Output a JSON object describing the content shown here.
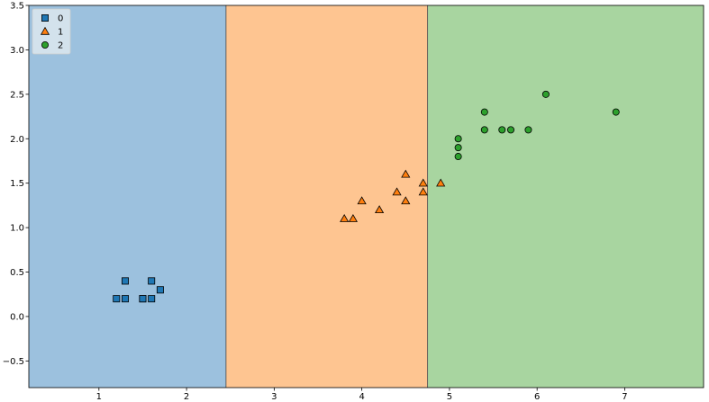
{
  "chart_data": {
    "type": "scatter",
    "title": "",
    "xlabel": "",
    "ylabel": "",
    "xlim": [
      0.2,
      7.9
    ],
    "ylim": [
      -0.8,
      3.5
    ],
    "xticks": [
      1,
      2,
      3,
      4,
      5,
      6,
      7
    ],
    "yticks": [
      -0.5,
      0.0,
      0.5,
      1.0,
      1.5,
      2.0,
      2.5,
      3.0,
      3.5
    ],
    "grid": false,
    "legend_position": "top-left",
    "decision_regions": [
      {
        "class": "0",
        "x_from": 0.2,
        "x_to": 2.45,
        "color": "#9cc1de"
      },
      {
        "class": "1",
        "x_from": 2.45,
        "x_to": 4.75,
        "color": "#fec591"
      },
      {
        "class": "2",
        "x_from": 4.75,
        "x_to": 7.9,
        "color": "#a8d5a0"
      }
    ],
    "boundaries": [
      2.45,
      4.75
    ],
    "series": [
      {
        "name": "0",
        "marker": "square",
        "color": "#1f77b4",
        "points": [
          [
            1.3,
            0.4
          ],
          [
            1.6,
            0.4
          ],
          [
            1.7,
            0.3
          ],
          [
            1.2,
            0.2
          ],
          [
            1.3,
            0.2
          ],
          [
            1.5,
            0.2
          ],
          [
            1.5,
            0.2
          ],
          [
            1.6,
            0.2
          ]
        ]
      },
      {
        "name": "1",
        "marker": "triangle",
        "color": "#ff7f0e",
        "points": [
          [
            3.8,
            1.1
          ],
          [
            3.9,
            1.1
          ],
          [
            4.0,
            1.3
          ],
          [
            4.2,
            1.2
          ],
          [
            4.4,
            1.4
          ],
          [
            4.5,
            1.3
          ],
          [
            4.5,
            1.6
          ],
          [
            4.7,
            1.4
          ],
          [
            4.7,
            1.5
          ],
          [
            4.9,
            1.5
          ]
        ]
      },
      {
        "name": "2",
        "marker": "circle",
        "color": "#2ca02c",
        "points": [
          [
            5.1,
            1.8
          ],
          [
            5.1,
            1.9
          ],
          [
            5.1,
            2.0
          ],
          [
            5.4,
            2.1
          ],
          [
            5.4,
            2.3
          ],
          [
            5.6,
            2.1
          ],
          [
            5.7,
            2.1
          ],
          [
            5.9,
            2.1
          ],
          [
            6.1,
            2.5
          ],
          [
            6.9,
            2.3
          ]
        ]
      }
    ]
  }
}
